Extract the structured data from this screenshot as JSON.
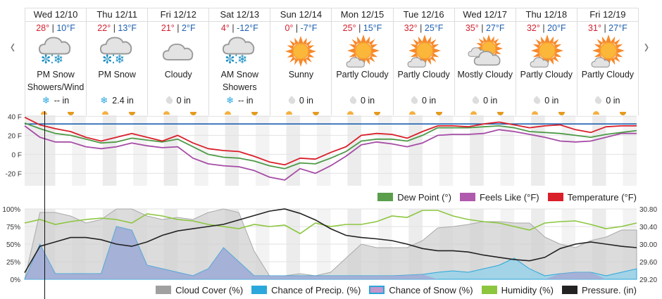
{
  "nav": {
    "prev": "‹",
    "next": "›"
  },
  "days": [
    {
      "name": "Wed 12/10",
      "hi": "28°",
      "lo": "10°F",
      "icon": "cloud-snow-icon",
      "cond": "PM Snow Showers/Wind",
      "precip_icon": "snowflake-icon",
      "precip": "-- in"
    },
    {
      "name": "Thu 12/11",
      "hi": "22°",
      "lo": "13°F",
      "icon": "cloud-snow-icon",
      "cond": "PM Snow",
      "precip_icon": "snowflake-icon",
      "precip": "2.4 in"
    },
    {
      "name": "Fri 12/12",
      "hi": "21°",
      "lo": "2°F",
      "icon": "cloud-icon",
      "cond": "Cloudy",
      "precip_icon": "raindrop-icon",
      "precip": "0 in"
    },
    {
      "name": "Sat 12/13",
      "hi": "4°",
      "lo": "-12°F",
      "icon": "cloud-snow-icon",
      "cond": "AM Snow Showers",
      "precip_icon": "snowflake-icon",
      "precip": "-- in"
    },
    {
      "name": "Sun 12/14",
      "hi": "0°",
      "lo": "-7°F",
      "icon": "sun-icon",
      "cond": "Sunny",
      "precip_icon": "raindrop-icon",
      "precip": "0 in"
    },
    {
      "name": "Mon 12/15",
      "hi": "25°",
      "lo": "15°F",
      "icon": "partly-cloudy-icon",
      "cond": "Partly Cloudy",
      "precip_icon": "raindrop-icon",
      "precip": "0 in"
    },
    {
      "name": "Tue 12/16",
      "hi": "32°",
      "lo": "25°F",
      "icon": "partly-cloudy-icon",
      "cond": "Partly Cloudy",
      "precip_icon": "raindrop-icon",
      "precip": "0 in"
    },
    {
      "name": "Wed 12/17",
      "hi": "35°",
      "lo": "27°F",
      "icon": "mostly-cloudy-icon",
      "cond": "Mostly Cloudy",
      "precip_icon": "raindrop-icon",
      "precip": "0 in"
    },
    {
      "name": "Thu 12/18",
      "hi": "32°",
      "lo": "20°F",
      "icon": "partly-cloudy-icon",
      "cond": "Partly Cloudy",
      "precip_icon": "raindrop-icon",
      "precip": "0 in"
    },
    {
      "name": "Fri 12/19",
      "hi": "31°",
      "lo": "27°F",
      "icon": "partly-cloudy-icon",
      "cond": "Partly Cloudy",
      "precip_icon": "raindrop-icon",
      "precip": "0 in"
    }
  ],
  "legend_temp": [
    "Dew Point (°)",
    "Feels Like (°F)",
    "Temperature (°F)"
  ],
  "legend_bottom": [
    "Cloud Cover (%)",
    "Chance of Precip. (%)",
    "Chance of Snow (%)",
    "Humidity (%)",
    "Pressure. (in)"
  ],
  "colors": {
    "temp": "#d91f2a",
    "feels": "#a64ca6",
    "dew": "#4e9a47",
    "freeze": "#1c5fb0",
    "cloud": "#a0a0a0",
    "precip": "#2aa7db",
    "snow": "#c396cc",
    "humidity": "#8cc63f",
    "pressure": "#222222"
  },
  "chart_data": [
    {
      "type": "line",
      "step_hours": 6,
      "ylim": [
        -33,
        41
      ],
      "yticks": [
        "40 F",
        "20 F",
        "0 F",
        "-20 F"
      ],
      "ytick_values": [
        40,
        20,
        0,
        -20
      ],
      "freezing_line": 32,
      "series": [
        {
          "name": "Temperature (°F)",
          "values": [
            39,
            31,
            27,
            24,
            18,
            14,
            18,
            22,
            18,
            14,
            20,
            12,
            6,
            4,
            3,
            -2,
            -8,
            -11,
            -4,
            -5,
            2,
            8,
            20,
            22,
            21,
            17,
            24,
            30,
            30,
            29,
            32,
            34,
            31,
            28,
            30,
            31,
            26,
            23,
            29,
            30,
            30
          ]
        },
        {
          "name": "Dew Point (°)",
          "values": [
            33,
            27,
            22,
            20,
            16,
            12,
            13,
            17,
            15,
            13,
            16,
            8,
            0,
            -3,
            -4,
            -7,
            -12,
            -15,
            -9,
            -10,
            -4,
            3,
            14,
            16,
            16,
            14,
            20,
            28,
            28,
            28,
            29,
            30,
            28,
            24,
            23,
            22,
            20,
            18,
            21,
            23,
            25
          ]
        },
        {
          "name": "Feels Like (°F)",
          "values": [
            30,
            18,
            13,
            13,
            8,
            6,
            8,
            12,
            9,
            7,
            8,
            -4,
            -10,
            -12,
            -13,
            -17,
            -24,
            -27,
            -15,
            -20,
            -12,
            -2,
            10,
            13,
            11,
            8,
            12,
            20,
            21,
            21,
            22,
            26,
            24,
            21,
            18,
            14,
            13,
            14,
            18,
            22,
            22
          ]
        }
      ]
    },
    {
      "type": "area",
      "step_hours": 6,
      "ylim": [
        0,
        100
      ],
      "yticks": [
        "100%",
        "75%",
        "50%",
        "25%",
        "0%"
      ],
      "y2lim": [
        29.2,
        30.8
      ],
      "y2ticks": [
        "30.80",
        "30.40",
        "30.00",
        "29.60",
        "29.20"
      ],
      "series": [
        {
          "name": "Cloud Cover (%)",
          "values": [
            0,
            95,
            95,
            90,
            80,
            85,
            100,
            100,
            90,
            85,
            88,
            85,
            95,
            100,
            95,
            40,
            5,
            5,
            8,
            5,
            10,
            30,
            50,
            45,
            45,
            45,
            55,
            73,
            75,
            78,
            82,
            82,
            80,
            80,
            60,
            50,
            45,
            55,
            60,
            70,
            70
          ]
        },
        {
          "name": "Chance of Precip. (%)",
          "values": [
            0,
            50,
            8,
            8,
            8,
            8,
            75,
            70,
            20,
            15,
            10,
            5,
            15,
            45,
            25,
            5,
            5,
            5,
            5,
            5,
            5,
            5,
            5,
            5,
            5,
            6,
            7,
            10,
            12,
            10,
            15,
            20,
            30,
            15,
            5,
            8,
            10,
            10,
            5,
            10,
            15
          ]
        },
        {
          "name": "Chance of Snow (%)",
          "values": [
            0,
            50,
            8,
            8,
            8,
            8,
            75,
            70,
            20,
            15,
            10,
            5,
            15,
            45,
            25,
            5,
            5,
            5,
            5,
            5,
            5,
            5,
            5,
            5,
            5,
            6,
            7,
            0,
            0,
            0,
            0,
            0,
            0,
            0,
            0,
            8,
            10,
            10,
            0,
            0,
            0
          ]
        },
        {
          "name": "Humidity (%)",
          "values": [
            80,
            85,
            78,
            82,
            85,
            87,
            85,
            80,
            93,
            90,
            85,
            83,
            78,
            75,
            72,
            78,
            75,
            77,
            65,
            80,
            75,
            78,
            78,
            82,
            90,
            88,
            98,
            98,
            90,
            85,
            82,
            80,
            75,
            70,
            80,
            82,
            83,
            78,
            72,
            75,
            80
          ]
        },
        {
          "name": "Pressure. (in)",
          "axis": "right",
          "values": [
            29.35,
            29.95,
            30.05,
            30.15,
            30.15,
            30.1,
            30.0,
            29.95,
            30.05,
            30.2,
            30.3,
            30.35,
            30.4,
            30.45,
            30.55,
            30.65,
            30.75,
            30.8,
            30.7,
            30.55,
            30.35,
            30.2,
            30.15,
            30.12,
            30.08,
            30.0,
            29.9,
            29.85,
            29.85,
            29.82,
            29.75,
            29.7,
            29.65,
            29.62,
            29.7,
            29.9,
            30.0,
            30.05,
            30.0,
            29.95,
            29.92
          ]
        }
      ]
    }
  ]
}
